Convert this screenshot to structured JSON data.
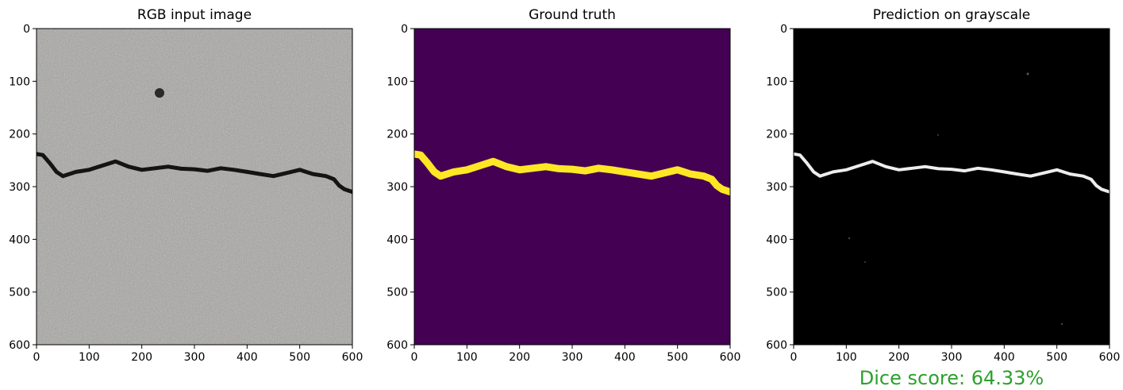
{
  "panels": [
    {
      "title": "RGB input image",
      "colors": {
        "background": "#a7a6a4",
        "crack": "#141414"
      }
    },
    {
      "title": "Ground truth",
      "colors": {
        "background": "#440154",
        "crack": "#fde725"
      }
    },
    {
      "title": "Prediction on grayscale",
      "colors": {
        "background": "#000000",
        "crack": "#ededed"
      }
    }
  ],
  "axes": {
    "x_ticks": [
      "0",
      "100",
      "200",
      "300",
      "400",
      "500",
      "600"
    ],
    "y_ticks": [
      "0",
      "100",
      "200",
      "300",
      "400",
      "500",
      "600"
    ],
    "xlim": [
      0,
      600
    ],
    "ylim": [
      600,
      0
    ]
  },
  "crack_path": {
    "x": [
      0,
      12,
      25,
      38,
      50,
      75,
      100,
      125,
      150,
      175,
      200,
      225,
      250,
      275,
      300,
      325,
      350,
      375,
      400,
      425,
      450,
      475,
      500,
      525,
      550,
      565,
      575,
      585,
      600
    ],
    "y": [
      238,
      240,
      255,
      272,
      280,
      272,
      268,
      260,
      252,
      262,
      268,
      265,
      262,
      266,
      267,
      270,
      265,
      268,
      272,
      276,
      280,
      274,
      268,
      276,
      280,
      286,
      298,
      305,
      310
    ]
  },
  "score": {
    "text": "Dice score: 64.33%",
    "color": "#2ca02c"
  }
}
